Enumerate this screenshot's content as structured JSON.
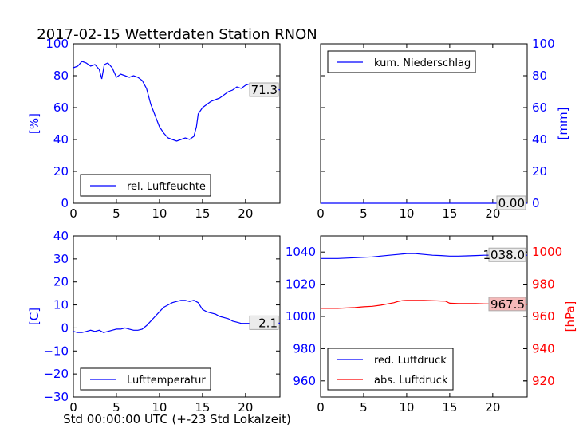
{
  "title": "2017-02-15 Wetterdaten Station RNON",
  "xlabel": "Std 00:00:00 UTC (+-23 Std Lokalzeit)",
  "colors": {
    "blue": "#0000ff",
    "red": "#ff0000",
    "black": "#000000",
    "last_bg_red": "#f5b9b9",
    "last_bg_grey": "#ececec"
  },
  "chart_data": [
    {
      "type": "line",
      "panel": "top-left",
      "ylabel": "[%]",
      "xlim": [
        0,
        24
      ],
      "ylim": [
        0,
        100
      ],
      "xticks": [
        "0",
        "5",
        "10",
        "15",
        "20"
      ],
      "yticks": [
        "0",
        "20",
        "40",
        "60",
        "80",
        "100"
      ],
      "legend": {
        "placement": "lower-left",
        "entries": [
          "rel. Luftfeuchte"
        ]
      },
      "last_value": "71.3",
      "series": [
        {
          "name": "rel. Luftfeuchte",
          "color": "#0000ff",
          "x": [
            0,
            0.5,
            1,
            1.5,
            2,
            2.5,
            3,
            3.3,
            3.6,
            4,
            4.5,
            5,
            5.5,
            6,
            6.5,
            7,
            7.5,
            8,
            8.5,
            9,
            9.5,
            10,
            10.5,
            11,
            11.5,
            12,
            12.5,
            13,
            13.5,
            14,
            14.3,
            14.5,
            15,
            15.5,
            16,
            16.5,
            17,
            17.5,
            18,
            18.5,
            19,
            19.5,
            20,
            20.5,
            21,
            21.5,
            22,
            22.5,
            23,
            23.5,
            24
          ],
          "y": [
            85,
            86,
            89,
            88,
            86,
            87,
            84,
            78,
            87,
            88,
            85,
            79,
            81,
            80,
            79,
            80,
            79,
            77,
            72,
            62,
            55,
            48,
            44,
            41,
            40,
            39,
            40,
            41,
            40,
            42,
            48,
            56,
            60,
            62,
            64,
            65,
            66,
            68,
            70,
            71,
            73,
            72,
            74,
            75,
            73,
            73,
            74,
            72,
            70,
            72,
            71
          ]
        }
      ]
    },
    {
      "type": "line",
      "panel": "top-right",
      "ylabel": "[mm]",
      "xlim": [
        0,
        24
      ],
      "ylim": [
        0,
        100
      ],
      "xticks": [
        "0",
        "5",
        "10",
        "15",
        "20"
      ],
      "yticks": [
        "0",
        "20",
        "40",
        "60",
        "80",
        "100"
      ],
      "legend": {
        "placement": "upper-left",
        "entries": [
          "kum. Niederschlag"
        ]
      },
      "last_value": "0.00",
      "series": [
        {
          "name": "kum. Niederschlag",
          "color": "#0000ff",
          "x": [
            0,
            24
          ],
          "y": [
            0,
            0
          ]
        }
      ]
    },
    {
      "type": "line",
      "panel": "bottom-left",
      "ylabel": "[C]",
      "xlim": [
        0,
        24
      ],
      "ylim": [
        -30,
        40
      ],
      "xticks": [
        "0",
        "5",
        "10",
        "15",
        "20"
      ],
      "yticks": [
        "−30",
        "−20",
        "−10",
        "0",
        "10",
        "20",
        "30",
        "40"
      ],
      "legend": {
        "placement": "lower-left",
        "entries": [
          "Lufttemperatur"
        ]
      },
      "last_value": "2.1",
      "series": [
        {
          "name": "Lufttemperatur",
          "color": "#0000ff",
          "x": [
            0,
            0.5,
            1,
            1.5,
            2,
            2.5,
            3,
            3.5,
            4,
            4.5,
            5,
            5.5,
            6,
            6.5,
            7,
            7.5,
            8,
            8.5,
            9,
            9.5,
            10,
            10.5,
            11,
            11.5,
            12,
            12.5,
            13,
            13.5,
            14,
            14.5,
            15,
            15.5,
            16,
            16.5,
            17,
            17.5,
            18,
            18.5,
            19,
            19.5,
            20,
            20.5,
            21,
            21.5,
            22,
            22.5,
            23,
            23.5,
            24
          ],
          "y": [
            -1.5,
            -2,
            -2,
            -1.5,
            -1,
            -1.5,
            -1,
            -2,
            -1.5,
            -1,
            -0.5,
            -0.5,
            0,
            -0.5,
            -1,
            -1,
            -0.5,
            1,
            3,
            5,
            7,
            9,
            10,
            11,
            11.5,
            12,
            12,
            11.5,
            12,
            11,
            8,
            7,
            6.5,
            6,
            5,
            4.5,
            4,
            3,
            2.5,
            2,
            2,
            2,
            2,
            1.8,
            2,
            2.2,
            2,
            2.1,
            2.1
          ]
        }
      ]
    },
    {
      "type": "line",
      "panel": "bottom-right",
      "ylabel": "[hPa]",
      "xlim": [
        0,
        24
      ],
      "ylim_left": [
        950,
        1050
      ],
      "ylim_right": [
        910,
        1010
      ],
      "xticks": [
        "0",
        "5",
        "10",
        "15",
        "20"
      ],
      "yticks_left": [
        "960",
        "980",
        "1000",
        "1020",
        "1040"
      ],
      "yticks_right": [
        "920",
        "940",
        "960",
        "980",
        "1000"
      ],
      "legend": {
        "placement": "lower-left",
        "entries": [
          "red. Luftdruck",
          "abs. Luftdruck"
        ]
      },
      "last_values": [
        "1038.0",
        "967.5"
      ],
      "series": [
        {
          "name": "red. Luftdruck",
          "color": "#0000ff",
          "axis": "left",
          "x": [
            0,
            2,
            4,
            6,
            8,
            9,
            10,
            11,
            12,
            13,
            14,
            15,
            16,
            17,
            18,
            19,
            20,
            21,
            22,
            23,
            24
          ],
          "y": [
            1036,
            1036,
            1036.5,
            1037,
            1038,
            1038.5,
            1039,
            1039,
            1038.5,
            1038,
            1037.8,
            1037.5,
            1037.5,
            1037.6,
            1037.8,
            1038,
            1038,
            1038,
            1038,
            1038,
            1038
          ]
        },
        {
          "name": "abs. Luftdruck",
          "color": "#ff0000",
          "axis": "right",
          "x": [
            0,
            2,
            4,
            5,
            6,
            7,
            8,
            8.5,
            9,
            9.5,
            10,
            11,
            12,
            13,
            14,
            14.5,
            15,
            16,
            17,
            18,
            19,
            20,
            21,
            22,
            23,
            24
          ],
          "y": [
            965,
            965,
            965.5,
            966,
            966.3,
            967,
            968,
            968.5,
            969.3,
            969.8,
            970,
            970,
            970,
            969.8,
            969.6,
            969.5,
            968.2,
            968,
            968,
            968,
            967.8,
            967.7,
            967.6,
            967.5,
            967.5,
            967.5
          ]
        }
      ]
    }
  ]
}
